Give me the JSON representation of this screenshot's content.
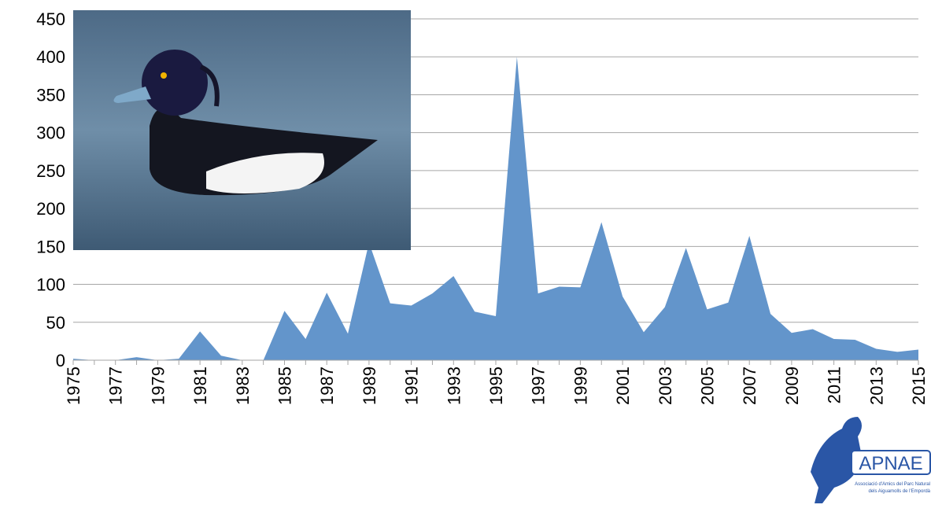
{
  "chart_data": {
    "type": "area",
    "color": "#6395cb",
    "x": [
      1975,
      1976,
      1977,
      1978,
      1979,
      1980,
      1981,
      1982,
      1983,
      1984,
      1985,
      1986,
      1987,
      1988,
      1989,
      1990,
      1991,
      1992,
      1993,
      1994,
      1995,
      1996,
      1997,
      1998,
      1999,
      2000,
      2001,
      2002,
      2003,
      2004,
      2005,
      2006,
      2007,
      2008,
      2009,
      2010,
      2011,
      2012,
      2013,
      2014,
      2015
    ],
    "values": [
      2,
      0,
      0,
      4,
      0,
      2,
      38,
      6,
      0,
      0,
      65,
      28,
      89,
      35,
      155,
      75,
      72,
      88,
      111,
      64,
      58,
      400,
      88,
      97,
      96,
      182,
      84,
      37,
      70,
      148,
      67,
      76,
      164,
      61,
      36,
      41,
      28,
      27,
      15,
      11,
      14
    ],
    "xlim": [
      1975,
      2015
    ],
    "xticks": [
      1975,
      1977,
      1979,
      1981,
      1983,
      1985,
      1987,
      1989,
      1991,
      1993,
      1995,
      1997,
      1999,
      2001,
      2003,
      2005,
      2007,
      2009,
      2011,
      2013,
      2015
    ],
    "ylim": [
      0,
      450
    ],
    "yticks": [
      0,
      50,
      100,
      150,
      200,
      250,
      300,
      350,
      400,
      450
    ],
    "grid": true
  },
  "logo": {
    "name": "APNAE",
    "lines": [
      "Associació d'Amics del Parc Natural",
      "dels Aiguamolls de l'Empordà"
    ]
  }
}
